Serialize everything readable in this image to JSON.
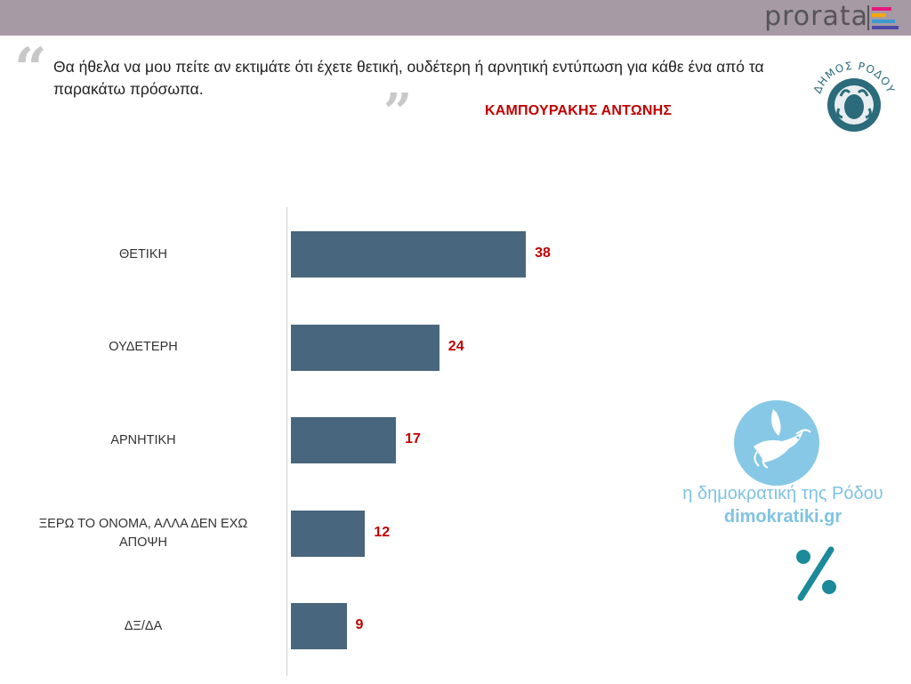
{
  "header": {
    "brand": "prorata"
  },
  "question": {
    "text": "Θα ήθελα να μου πείτε αν εκτιμάτε ότι έχετε θετική, ουδέτερη ή αρνητική εντύπωση για κάθε ένα από τα παρακάτω πρόσωπα.",
    "subject": "ΚΑΜΠΟΥΡΑΚΗΣ ΑΝΤΩΝΗΣ"
  },
  "logos": {
    "municipality_seal": "ΔΗΜΟΣ ΡΟΔΟΥ",
    "dove_icon": "dove-icon",
    "percent_icon": "percent-icon"
  },
  "watermark": {
    "name": "η δημοκρατική της Ρόδου",
    "site": "dimokratiki.gr"
  },
  "colors": {
    "bar": "#48667d",
    "value": "#c00000",
    "topbar": "#a69aa4",
    "watermark": "#7fc3e2"
  },
  "chart_data": {
    "type": "bar",
    "orientation": "horizontal",
    "categories": [
      "ΘΕΤΙΚΗ",
      "ΟΥΔΕΤΕΡΗ",
      "ΑΡΝΗΤΙΚΗ",
      "ΞΕΡΩ ΤΟ ΟΝΟΜΑ, ΑΛΛΑ ΔΕΝ ΕΧΩ ΑΠΟΨΗ",
      "ΔΞ/ΔΑ"
    ],
    "values": [
      38,
      24,
      17,
      12,
      9
    ],
    "title": "",
    "xlabel": "",
    "ylabel": "",
    "grid": false,
    "legend": "none",
    "data_labels": true
  }
}
